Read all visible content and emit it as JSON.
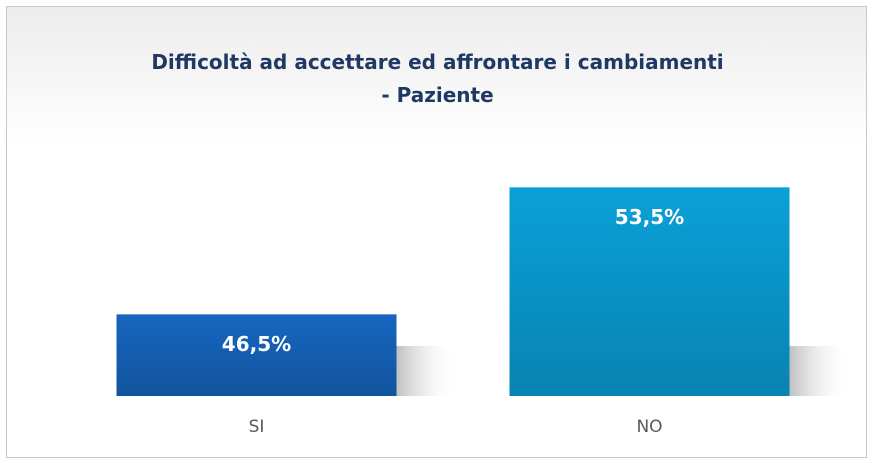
{
  "chart_data": {
    "type": "bar",
    "title": "Difficoltà ad accettare ed affrontare i cambiamenti\n- Paziente",
    "categories": [
      "SI",
      "NO"
    ],
    "values": [
      46.5,
      53.5
    ],
    "value_labels": [
      "46,5%",
      "53,5%"
    ],
    "colors": [
      "#1666c0",
      "#0aa0d8"
    ],
    "ylim": [
      42,
      56
    ]
  }
}
